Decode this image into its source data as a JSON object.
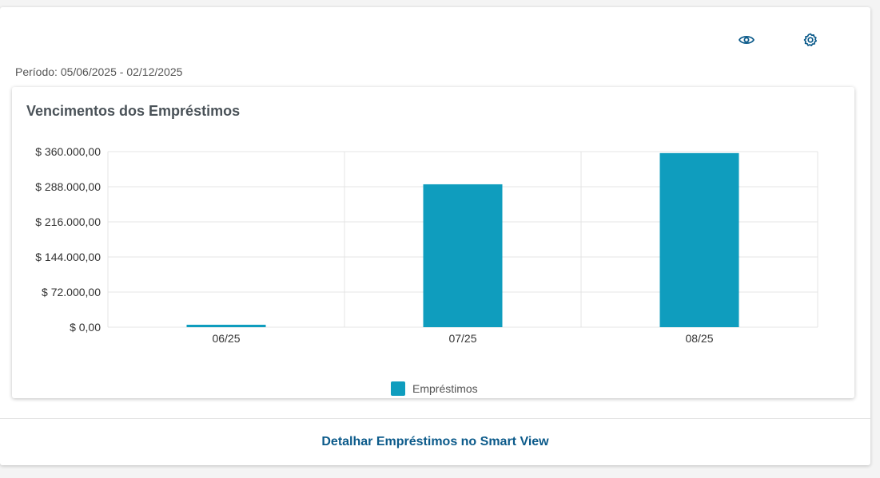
{
  "period": {
    "label": "Período: 05/06/2025 - 02/12/2025"
  },
  "toolbar": {
    "view_icon": "eye-icon",
    "settings_icon": "gear-icon"
  },
  "colors": {
    "accent": "#0f9dbe",
    "link": "#0b5a8a",
    "grid": "#e4e4e4"
  },
  "chart_data": {
    "type": "bar",
    "title": "Vencimentos dos Empréstimos",
    "categories": [
      "06/25",
      "07/25",
      "08/25"
    ],
    "series": [
      {
        "name": "Empréstimos",
        "values": [
          5000,
          293000,
          357000
        ]
      }
    ],
    "ylim": [
      0,
      360000
    ],
    "yticks": [
      0,
      72000,
      144000,
      216000,
      288000,
      360000
    ],
    "ytick_labels": [
      "$ 0,00",
      "$ 72.000,00",
      "$ 144.000,00",
      "$ 216.000,00",
      "$ 288.000,00",
      "$ 360.000,00"
    ],
    "grid": true,
    "legend_position": "bottom-center"
  },
  "footer": {
    "link_label": "Detalhar Empréstimos no Smart View"
  }
}
